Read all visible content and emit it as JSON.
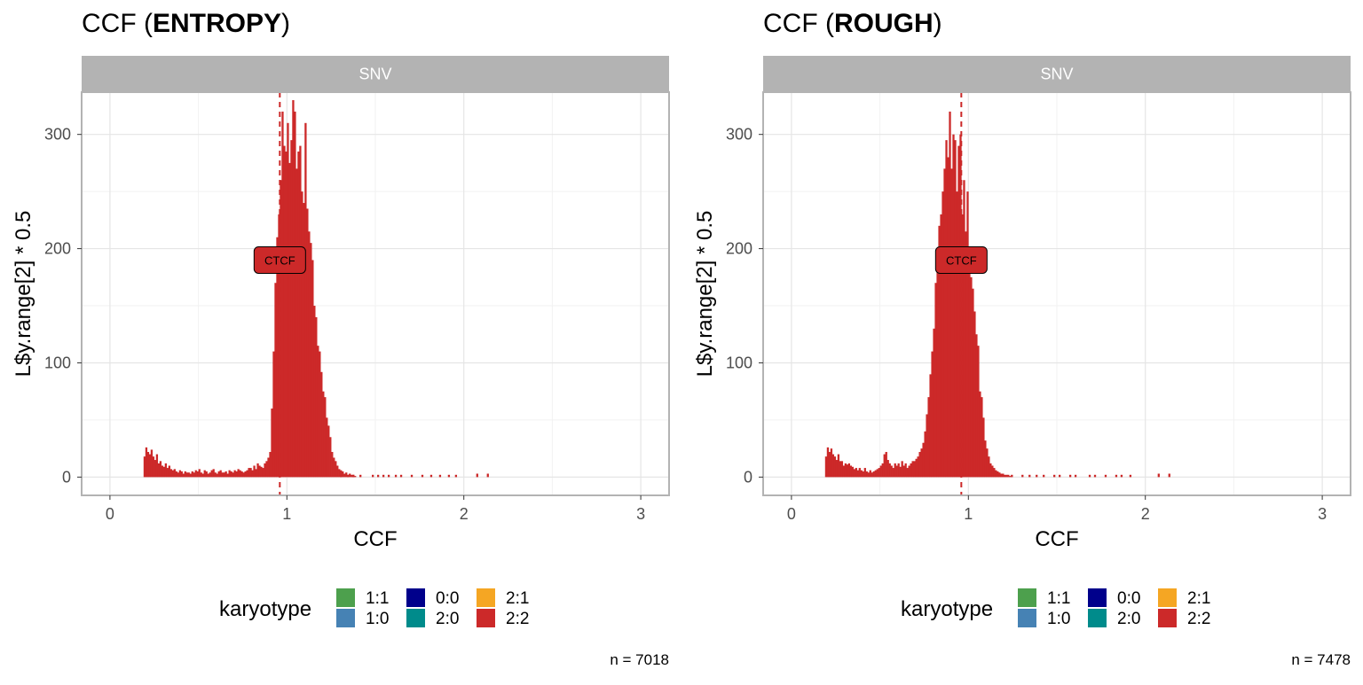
{
  "legend": {
    "title": "karyotype",
    "entries": [
      {
        "label": "1:1",
        "color": "#4DA04D"
      },
      {
        "label": "1:0",
        "color": "#4682B4"
      },
      {
        "label": "0:0",
        "color": "#00008B"
      },
      {
        "label": "2:0",
        "color": "#008B8B"
      },
      {
        "label": "2:1",
        "color": "#F5A623"
      },
      {
        "label": "2:2",
        "color": "#CC2929"
      }
    ]
  },
  "chart_data": [
    {
      "type": "bar",
      "title_prefix": "CCF (",
      "title_bold": "ENTROPY",
      "title_suffix": ")",
      "facet_label": "SNV",
      "xlabel": "CCF",
      "ylabel": "L$y.range[2] * 0.5",
      "xlim": [
        -0.16,
        3.16
      ],
      "ylim": [
        -16,
        337
      ],
      "x_ticks": [
        0,
        1,
        2,
        3
      ],
      "y_ticks": [
        0,
        100,
        200,
        300
      ],
      "grid": true,
      "vline_x": 0.96,
      "annotation": {
        "label": "CTCF",
        "x": 0.96,
        "y": 190
      },
      "caption": "n = 7018",
      "series": [
        {
          "karyotype": "2:2",
          "color": "#CC2929"
        }
      ],
      "bin_width": 0.01,
      "x_start": 0.19,
      "values": [
        18,
        26,
        22,
        20,
        24,
        18,
        15,
        20,
        12,
        14,
        10,
        9,
        12,
        8,
        10,
        7,
        6,
        7,
        5,
        4,
        6,
        5,
        3,
        5,
        4,
        4,
        3,
        5,
        4,
        6,
        5,
        7,
        4,
        3,
        6,
        5,
        3,
        4,
        6,
        7,
        4,
        3,
        5,
        6,
        4,
        4,
        5,
        3,
        6,
        5,
        4,
        6,
        5,
        7,
        6,
        5,
        4,
        5,
        6,
        8,
        8,
        6,
        10,
        7,
        12,
        10,
        9,
        8,
        12,
        14,
        17,
        22,
        60,
        110,
        170,
        210,
        230,
        260,
        320,
        290,
        285,
        310,
        275,
        295,
        330,
        320,
        270,
        285,
        290,
        250,
        240,
        310,
        235,
        215,
        205,
        190,
        150,
        140,
        115,
        110,
        92,
        75,
        70,
        52,
        45,
        35,
        22,
        17,
        14,
        10,
        7,
        6,
        5,
        3,
        4,
        2,
        3,
        2,
        2,
        1
      ],
      "sparse_x": [
        1.3,
        1.34,
        1.37,
        1.41,
        1.48,
        1.51,
        1.54,
        1.57,
        1.61,
        1.64,
        1.7,
        1.76,
        1.81,
        1.86,
        1.91,
        1.95,
        2.07,
        2.13
      ],
      "sparse_h": [
        2,
        2,
        2,
        2,
        2,
        2,
        2,
        2,
        2,
        2,
        2,
        2,
        2,
        2,
        2,
        2,
        3,
        3
      ]
    },
    {
      "type": "bar",
      "title_prefix": "CCF (",
      "title_bold": "ROUGH",
      "title_suffix": ")",
      "facet_label": "SNV",
      "xlabel": "CCF",
      "ylabel": "L$y.range[2] * 0.5",
      "xlim": [
        -0.16,
        3.16
      ],
      "ylim": [
        -16,
        337
      ],
      "x_ticks": [
        0,
        1,
        2,
        3
      ],
      "y_ticks": [
        0,
        100,
        200,
        300
      ],
      "grid": true,
      "vline_x": 0.96,
      "annotation": {
        "label": "CTCF",
        "x": 0.96,
        "y": 190
      },
      "caption": "n = 7478",
      "series": [
        {
          "karyotype": "2:2",
          "color": "#CC2929"
        }
      ],
      "bin_width": 0.01,
      "x_start": 0.19,
      "values": [
        18,
        26,
        22,
        25,
        20,
        18,
        15,
        20,
        14,
        14,
        10,
        12,
        11,
        12,
        10,
        9,
        7,
        8,
        6,
        8,
        6,
        5,
        8,
        5,
        4,
        6,
        4,
        5,
        6,
        7,
        8,
        10,
        12,
        20,
        22,
        15,
        12,
        10,
        8,
        12,
        10,
        12,
        9,
        14,
        10,
        12,
        8,
        10,
        12,
        14,
        14,
        16,
        18,
        22,
        25,
        30,
        40,
        55,
        70,
        90,
        110,
        130,
        170,
        200,
        220,
        230,
        250,
        270,
        295,
        280,
        320,
        270,
        300,
        295,
        250,
        290,
        300,
        230,
        260,
        215,
        250,
        180,
        175,
        165,
        145,
        125,
        115,
        75,
        70,
        52,
        32,
        25,
        18,
        12,
        10,
        8,
        6,
        5,
        4,
        3,
        3,
        2,
        2,
        2,
        1,
        2
      ],
      "sparse_x": [
        1.3,
        1.34,
        1.38,
        1.42,
        1.48,
        1.51,
        1.57,
        1.6,
        1.68,
        1.71,
        1.77,
        1.83,
        1.86,
        1.91,
        2.07,
        2.13
      ],
      "sparse_h": [
        2,
        2,
        2,
        2,
        2,
        2,
        2,
        2,
        2,
        2,
        2,
        2,
        2,
        2,
        3,
        3
      ]
    }
  ]
}
